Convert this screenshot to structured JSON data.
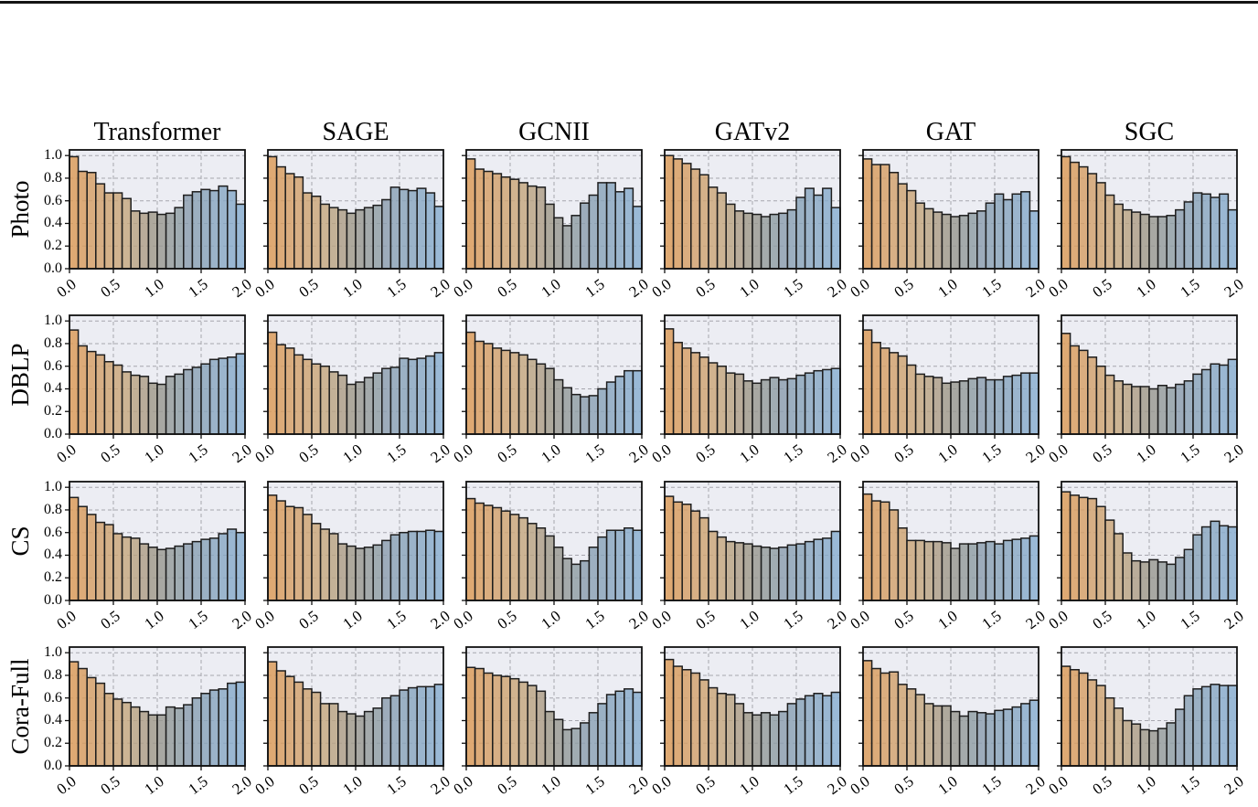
{
  "page": {
    "top_rule": true
  },
  "figure": {
    "columns": [
      "Transformer",
      "SAGE",
      "GCNII",
      "GATv2",
      "GAT",
      "SGC"
    ],
    "rows": [
      "Photo",
      "DBLP",
      "CS",
      "Cora-Full"
    ],
    "x_tick_labels": [
      "0.0",
      "0.5",
      "1.0",
      "1.5",
      "2.0"
    ],
    "y_tick_labels": [
      "1.0",
      "0.8",
      "0.6",
      "0.4",
      "0.2",
      "0.0"
    ],
    "style": {
      "panel_bg": "#ECEDF3",
      "grid_color": "#A6A6AE",
      "spine_color": "#111111",
      "bar_edge_color": "#1E1E1E",
      "colormap_stops": [
        {
          "t": 0.0,
          "hex": "#DB9A57"
        },
        {
          "t": 0.3,
          "hex": "#C9A87E"
        },
        {
          "t": 0.5,
          "hex": "#9A988C"
        },
        {
          "t": 0.7,
          "hex": "#8A9FB1"
        },
        {
          "t": 1.0,
          "hex": "#88ADD0"
        }
      ]
    }
  },
  "chart_data": [
    {
      "type": "bar",
      "row": "Photo",
      "column": "Transformer",
      "bin_start": 0.0,
      "bin_end": 2.0,
      "bins": 20,
      "ylim": [
        0,
        1.05
      ],
      "values": [
        0.99,
        0.86,
        0.85,
        0.75,
        0.67,
        0.67,
        0.62,
        0.51,
        0.49,
        0.5,
        0.48,
        0.49,
        0.54,
        0.65,
        0.68,
        0.7,
        0.69,
        0.73,
        0.69,
        0.57
      ]
    },
    {
      "type": "bar",
      "row": "Photo",
      "column": "SAGE",
      "bin_start": 0.0,
      "bin_end": 2.0,
      "bins": 20,
      "ylim": [
        0,
        1.05
      ],
      "values": [
        0.99,
        0.9,
        0.84,
        0.81,
        0.67,
        0.64,
        0.57,
        0.54,
        0.52,
        0.49,
        0.52,
        0.54,
        0.56,
        0.61,
        0.72,
        0.7,
        0.69,
        0.71,
        0.67,
        0.55
      ]
    },
    {
      "type": "bar",
      "row": "Photo",
      "column": "GCNII",
      "bin_start": 0.0,
      "bin_end": 2.0,
      "bins": 20,
      "ylim": [
        0,
        1.05
      ],
      "values": [
        0.97,
        0.88,
        0.86,
        0.84,
        0.81,
        0.79,
        0.76,
        0.73,
        0.72,
        0.57,
        0.45,
        0.38,
        0.47,
        0.58,
        0.65,
        0.76,
        0.76,
        0.68,
        0.71,
        0.55
      ]
    },
    {
      "type": "bar",
      "row": "Photo",
      "column": "GATv2",
      "bin_start": 0.0,
      "bin_end": 2.0,
      "bins": 20,
      "ylim": [
        0,
        1.05
      ],
      "values": [
        1.0,
        0.97,
        0.93,
        0.88,
        0.83,
        0.72,
        0.67,
        0.57,
        0.51,
        0.49,
        0.48,
        0.46,
        0.48,
        0.49,
        0.52,
        0.63,
        0.71,
        0.65,
        0.71,
        0.54
      ]
    },
    {
      "type": "bar",
      "row": "Photo",
      "column": "GAT",
      "bin_start": 0.0,
      "bin_end": 2.0,
      "bins": 20,
      "ylim": [
        0,
        1.05
      ],
      "values": [
        0.97,
        0.92,
        0.92,
        0.85,
        0.75,
        0.69,
        0.58,
        0.53,
        0.5,
        0.48,
        0.46,
        0.47,
        0.49,
        0.51,
        0.58,
        0.66,
        0.61,
        0.66,
        0.68,
        0.51
      ]
    },
    {
      "type": "bar",
      "row": "Photo",
      "column": "SGC",
      "bin_start": 0.0,
      "bin_end": 2.0,
      "bins": 20,
      "ylim": [
        0,
        1.05
      ],
      "values": [
        0.99,
        0.94,
        0.9,
        0.84,
        0.76,
        0.65,
        0.57,
        0.52,
        0.5,
        0.48,
        0.46,
        0.46,
        0.47,
        0.52,
        0.59,
        0.67,
        0.66,
        0.63,
        0.66,
        0.52
      ]
    },
    {
      "type": "bar",
      "row": "DBLP",
      "column": "Transformer",
      "bin_start": 0.0,
      "bin_end": 2.0,
      "bins": 20,
      "ylim": [
        0,
        1.05
      ],
      "values": [
        0.92,
        0.78,
        0.73,
        0.7,
        0.64,
        0.61,
        0.55,
        0.52,
        0.51,
        0.45,
        0.44,
        0.51,
        0.53,
        0.57,
        0.59,
        0.62,
        0.66,
        0.67,
        0.68,
        0.71
      ]
    },
    {
      "type": "bar",
      "row": "DBLP",
      "column": "SAGE",
      "bin_start": 0.0,
      "bin_end": 2.0,
      "bins": 20,
      "ylim": [
        0,
        1.05
      ],
      "values": [
        0.9,
        0.79,
        0.76,
        0.7,
        0.66,
        0.62,
        0.6,
        0.55,
        0.52,
        0.44,
        0.46,
        0.5,
        0.54,
        0.58,
        0.59,
        0.67,
        0.66,
        0.67,
        0.69,
        0.72
      ]
    },
    {
      "type": "bar",
      "row": "DBLP",
      "column": "GCNII",
      "bin_start": 0.0,
      "bin_end": 2.0,
      "bins": 20,
      "ylim": [
        0,
        1.05
      ],
      "values": [
        0.9,
        0.82,
        0.8,
        0.76,
        0.74,
        0.72,
        0.7,
        0.66,
        0.62,
        0.58,
        0.48,
        0.41,
        0.35,
        0.33,
        0.34,
        0.4,
        0.46,
        0.51,
        0.56,
        0.56
      ]
    },
    {
      "type": "bar",
      "row": "DBLP",
      "column": "GATv2",
      "bin_start": 0.0,
      "bin_end": 2.0,
      "bins": 20,
      "ylim": [
        0,
        1.05
      ],
      "values": [
        0.93,
        0.81,
        0.76,
        0.72,
        0.68,
        0.63,
        0.6,
        0.54,
        0.53,
        0.47,
        0.45,
        0.48,
        0.5,
        0.48,
        0.49,
        0.52,
        0.54,
        0.56,
        0.57,
        0.58
      ]
    },
    {
      "type": "bar",
      "row": "DBLP",
      "column": "GAT",
      "bin_start": 0.0,
      "bin_end": 2.0,
      "bins": 20,
      "ylim": [
        0,
        1.05
      ],
      "values": [
        0.92,
        0.81,
        0.76,
        0.72,
        0.69,
        0.61,
        0.53,
        0.51,
        0.5,
        0.45,
        0.46,
        0.47,
        0.49,
        0.5,
        0.48,
        0.48,
        0.51,
        0.52,
        0.54,
        0.54
      ]
    },
    {
      "type": "bar",
      "row": "DBLP",
      "column": "SGC",
      "bin_start": 0.0,
      "bin_end": 2.0,
      "bins": 20,
      "ylim": [
        0,
        1.05
      ],
      "values": [
        0.89,
        0.78,
        0.74,
        0.68,
        0.6,
        0.52,
        0.47,
        0.44,
        0.42,
        0.42,
        0.4,
        0.43,
        0.41,
        0.44,
        0.47,
        0.53,
        0.57,
        0.62,
        0.61,
        0.66
      ]
    },
    {
      "type": "bar",
      "row": "CS",
      "column": "Transformer",
      "bin_start": 0.0,
      "bin_end": 2.0,
      "bins": 20,
      "ylim": [
        0,
        1.05
      ],
      "values": [
        0.91,
        0.83,
        0.76,
        0.69,
        0.67,
        0.59,
        0.56,
        0.55,
        0.5,
        0.47,
        0.45,
        0.46,
        0.48,
        0.5,
        0.52,
        0.54,
        0.55,
        0.59,
        0.63,
        0.6
      ]
    },
    {
      "type": "bar",
      "row": "CS",
      "column": "SAGE",
      "bin_start": 0.0,
      "bin_end": 2.0,
      "bins": 20,
      "ylim": [
        0,
        1.05
      ],
      "values": [
        0.93,
        0.88,
        0.83,
        0.82,
        0.76,
        0.68,
        0.63,
        0.59,
        0.5,
        0.48,
        0.46,
        0.47,
        0.49,
        0.53,
        0.58,
        0.6,
        0.61,
        0.61,
        0.62,
        0.61
      ]
    },
    {
      "type": "bar",
      "row": "CS",
      "column": "GCNII",
      "bin_start": 0.0,
      "bin_end": 2.0,
      "bins": 20,
      "ylim": [
        0,
        1.05
      ],
      "values": [
        0.9,
        0.86,
        0.84,
        0.82,
        0.79,
        0.76,
        0.73,
        0.68,
        0.64,
        0.57,
        0.47,
        0.37,
        0.32,
        0.35,
        0.47,
        0.56,
        0.62,
        0.62,
        0.64,
        0.62
      ]
    },
    {
      "type": "bar",
      "row": "CS",
      "column": "GATv2",
      "bin_start": 0.0,
      "bin_end": 2.0,
      "bins": 20,
      "ylim": [
        0,
        1.05
      ],
      "values": [
        0.92,
        0.87,
        0.85,
        0.79,
        0.73,
        0.61,
        0.56,
        0.52,
        0.51,
        0.5,
        0.48,
        0.47,
        0.46,
        0.47,
        0.49,
        0.5,
        0.52,
        0.54,
        0.55,
        0.61
      ]
    },
    {
      "type": "bar",
      "row": "CS",
      "column": "GAT",
      "bin_start": 0.0,
      "bin_end": 2.0,
      "bins": 20,
      "ylim": [
        0,
        1.05
      ],
      "values": [
        0.94,
        0.88,
        0.87,
        0.8,
        0.64,
        0.53,
        0.53,
        0.52,
        0.52,
        0.51,
        0.46,
        0.5,
        0.5,
        0.51,
        0.52,
        0.5,
        0.53,
        0.54,
        0.55,
        0.57
      ]
    },
    {
      "type": "bar",
      "row": "CS",
      "column": "SGC",
      "bin_start": 0.0,
      "bin_end": 2.0,
      "bins": 20,
      "ylim": [
        0,
        1.05
      ],
      "values": [
        0.96,
        0.93,
        0.91,
        0.9,
        0.83,
        0.71,
        0.59,
        0.42,
        0.35,
        0.34,
        0.36,
        0.34,
        0.32,
        0.38,
        0.45,
        0.58,
        0.65,
        0.7,
        0.66,
        0.65
      ]
    },
    {
      "type": "bar",
      "row": "Cora-Full",
      "column": "Transformer",
      "bin_start": 0.0,
      "bin_end": 2.0,
      "bins": 20,
      "ylim": [
        0,
        1.05
      ],
      "values": [
        0.92,
        0.86,
        0.78,
        0.73,
        0.64,
        0.59,
        0.56,
        0.52,
        0.48,
        0.45,
        0.45,
        0.52,
        0.51,
        0.54,
        0.6,
        0.64,
        0.67,
        0.68,
        0.73,
        0.74
      ]
    },
    {
      "type": "bar",
      "row": "Cora-Full",
      "column": "SAGE",
      "bin_start": 0.0,
      "bin_end": 2.0,
      "bins": 20,
      "ylim": [
        0,
        1.05
      ],
      "values": [
        0.92,
        0.84,
        0.79,
        0.74,
        0.68,
        0.65,
        0.55,
        0.55,
        0.48,
        0.46,
        0.44,
        0.48,
        0.51,
        0.6,
        0.62,
        0.67,
        0.69,
        0.7,
        0.7,
        0.72
      ]
    },
    {
      "type": "bar",
      "row": "Cora-Full",
      "column": "GCNII",
      "bin_start": 0.0,
      "bin_end": 2.0,
      "bins": 20,
      "ylim": [
        0,
        1.05
      ],
      "values": [
        0.87,
        0.86,
        0.82,
        0.8,
        0.79,
        0.77,
        0.74,
        0.71,
        0.66,
        0.48,
        0.41,
        0.32,
        0.33,
        0.38,
        0.47,
        0.55,
        0.63,
        0.66,
        0.68,
        0.65
      ]
    },
    {
      "type": "bar",
      "row": "Cora-Full",
      "column": "GATv2",
      "bin_start": 0.0,
      "bin_end": 2.0,
      "bins": 20,
      "ylim": [
        0,
        1.05
      ],
      "values": [
        0.94,
        0.88,
        0.85,
        0.82,
        0.76,
        0.69,
        0.64,
        0.63,
        0.55,
        0.47,
        0.45,
        0.47,
        0.45,
        0.48,
        0.55,
        0.59,
        0.62,
        0.64,
        0.62,
        0.65
      ]
    },
    {
      "type": "bar",
      "row": "Cora-Full",
      "column": "GAT",
      "bin_start": 0.0,
      "bin_end": 2.0,
      "bins": 20,
      "ylim": [
        0,
        1.05
      ],
      "values": [
        0.93,
        0.86,
        0.82,
        0.83,
        0.72,
        0.68,
        0.63,
        0.55,
        0.53,
        0.53,
        0.48,
        0.44,
        0.48,
        0.47,
        0.46,
        0.49,
        0.5,
        0.52,
        0.55,
        0.58
      ]
    },
    {
      "type": "bar",
      "row": "Cora-Full",
      "column": "SGC",
      "bin_start": 0.0,
      "bin_end": 2.0,
      "bins": 20,
      "ylim": [
        0,
        1.05
      ],
      "values": [
        0.88,
        0.85,
        0.82,
        0.76,
        0.71,
        0.6,
        0.51,
        0.4,
        0.37,
        0.32,
        0.31,
        0.33,
        0.38,
        0.5,
        0.62,
        0.68,
        0.7,
        0.72,
        0.71,
        0.71
      ]
    }
  ]
}
